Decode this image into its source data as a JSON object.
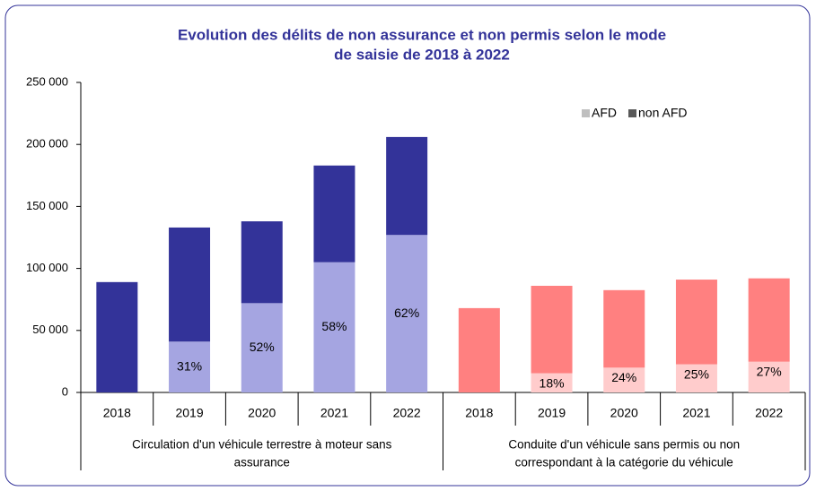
{
  "chart_data": {
    "type": "stacked_bar",
    "title": [
      "Evolution des délits de non assurance et non permis selon le mode",
      "de saisie  de 2018 à 2022"
    ],
    "ylim": [
      0,
      250000
    ],
    "yticks": [
      {
        "value": 0,
        "label": "0"
      },
      {
        "value": 50000,
        "label": "50 000"
      },
      {
        "value": 100000,
        "label": "100 000"
      },
      {
        "value": 150000,
        "label": "150 000"
      },
      {
        "value": 200000,
        "label": "200 000"
      },
      {
        "value": 250000,
        "label": "250 000"
      }
    ],
    "legend_position": "top-right",
    "series": [
      {
        "name": "AFD",
        "color": "#bfbfbf"
      },
      {
        "name": "non AFD",
        "color": "#595959"
      }
    ],
    "groups": [
      {
        "label": [
          "Circulation d'un véhicule terrestre à moteur sans",
          "assurance"
        ],
        "categories": [
          "2018",
          "2019",
          "2020",
          "2021",
          "2022"
        ],
        "series": [
          {
            "color": "#a5a5e1",
            "values": [
              0,
              41000,
              72000,
              105000,
              127000
            ],
            "share_labels": [
              null,
              "31%",
              "52%",
              "58%",
              "62%"
            ]
          },
          {
            "color": "#333399",
            "values": [
              89000,
              92000,
              66000,
              78000,
              79000
            ]
          }
        ]
      },
      {
        "label": [
          "Conduite d'un véhicule sans permis ou non",
          "correspondant à la catégorie du véhicule"
        ],
        "categories": [
          "2018",
          "2019",
          "2020",
          "2021",
          "2022"
        ],
        "series": [
          {
            "color": "#ffcccc",
            "values": [
              0,
              15500,
              20000,
              22700,
              24800
            ],
            "share_labels": [
              null,
              "18%",
              "24%",
              "25%",
              "27%"
            ]
          },
          {
            "color": "#ff8080",
            "values": [
              68000,
              70500,
              62500,
              68300,
              67200
            ]
          }
        ]
      }
    ]
  }
}
